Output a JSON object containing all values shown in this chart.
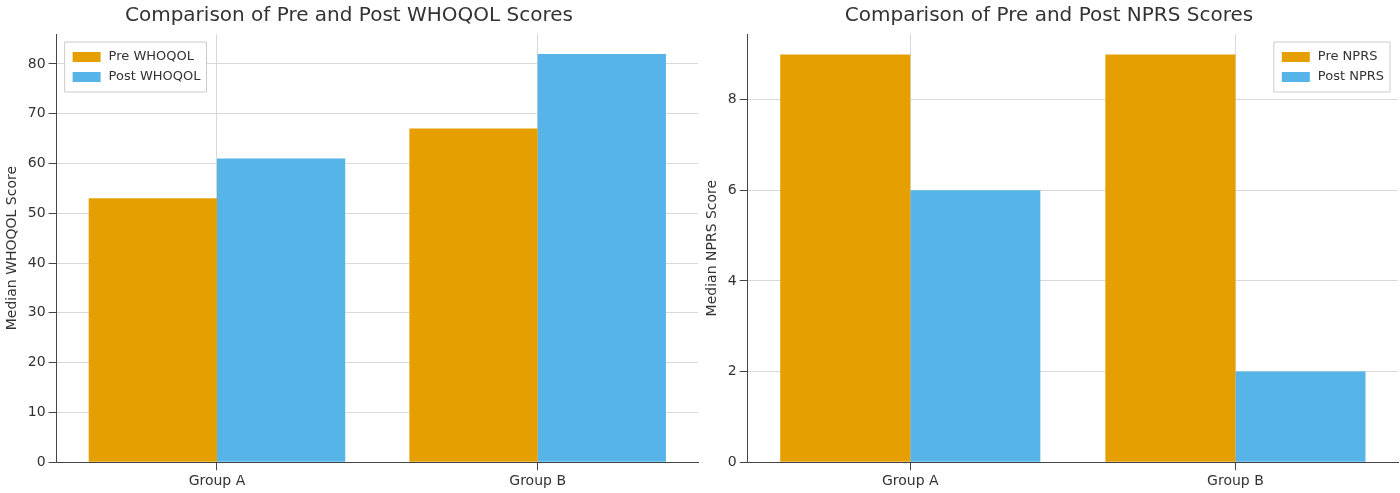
{
  "chart_data": [
    {
      "type": "bar",
      "title": "Comparison of Pre and Post WHOQOL Scores",
      "ylabel": "Median WHOQOL Score",
      "categories": [
        "Group A",
        "Group B"
      ],
      "series": [
        {
          "name": "Pre WHOQOL",
          "color": "#e69f00",
          "values": [
            53,
            67
          ]
        },
        {
          "name": "Post WHOQOL",
          "color": "#56b4e9",
          "values": [
            61,
            82
          ]
        }
      ],
      "ylim": [
        0,
        86
      ],
      "yticks": [
        0,
        10,
        20,
        30,
        40,
        50,
        60,
        70,
        80
      ],
      "grid": true,
      "legend": "top left"
    },
    {
      "type": "bar",
      "title": "Comparison of Pre and Post NPRS Scores",
      "ylabel": "Median NPRS Score",
      "categories": [
        "Group A",
        "Group B"
      ],
      "series": [
        {
          "name": "Pre NPRS",
          "color": "#e69f00",
          "values": [
            9,
            9
          ]
        },
        {
          "name": "Post NPRS",
          "color": "#56b4e9",
          "values": [
            6,
            2
          ]
        }
      ],
      "ylim": [
        0,
        9.45
      ],
      "yticks": [
        0,
        2,
        4,
        6,
        8
      ],
      "grid": true,
      "legend": "top right"
    }
  ]
}
